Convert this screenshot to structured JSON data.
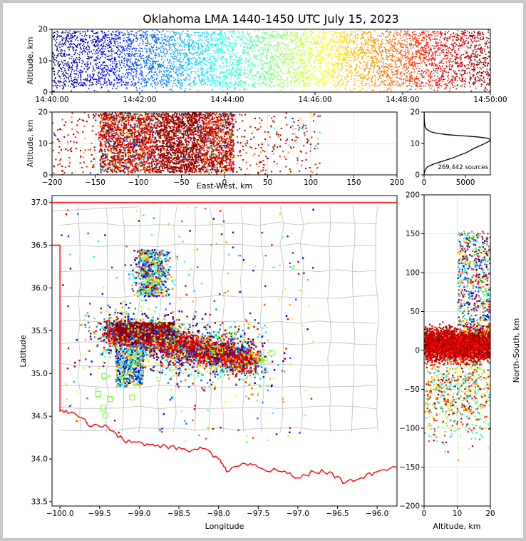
{
  "title": "Oklahoma LMA 1440-1450 UTC July 15, 2023",
  "chart_data": [
    {
      "id": "time-height",
      "type": "scatter",
      "ylabel": "Altitude, km",
      "xlim": [
        "14:40:00",
        "14:50:00"
      ],
      "ylim": [
        0,
        20
      ],
      "x_ticks": [
        "14:40:00",
        "14:42:00",
        "14:44:00",
        "14:46:00",
        "14:48:00",
        "14:50:00"
      ],
      "y_ticks": [
        "0",
        "10",
        "20"
      ],
      "color_by": "time",
      "colormap": [
        "#00007f",
        "#0000ff",
        "#00bfff",
        "#40ffbf",
        "#ffff00",
        "#ff8000",
        "#ff0000",
        "#7f0000"
      ]
    },
    {
      "id": "east-west-height",
      "type": "scatter",
      "xlabel": "East-West, km",
      "ylabel": "Altitude, km",
      "xlim": [
        -200,
        200
      ],
      "ylim": [
        0,
        20
      ],
      "x_ticks": [
        "−200",
        "−150",
        "−100",
        "−50",
        "0",
        "50",
        "100",
        "150",
        "200"
      ],
      "y_ticks": [
        "0",
        "10",
        "20"
      ],
      "core_extent_km": [
        -145,
        10
      ]
    },
    {
      "id": "altitude-histogram",
      "type": "line",
      "annotation": "269,442 sources",
      "xlim": [
        0,
        8000
      ],
      "ylim": [
        0,
        20
      ],
      "x_ticks": [
        "0",
        "5000"
      ],
      "y_ticks": [
        "0",
        "10",
        "20"
      ],
      "points": [
        [
          0,
          0.3
        ],
        [
          60,
          1.0
        ],
        [
          180,
          1.8
        ],
        [
          420,
          2.6
        ],
        [
          1200,
          3.5
        ],
        [
          2400,
          4.5
        ],
        [
          3600,
          5.5
        ],
        [
          4300,
          6.3
        ],
        [
          5100,
          7.1
        ],
        [
          5600,
          7.8
        ],
        [
          6000,
          8.4
        ],
        [
          6500,
          9.0
        ],
        [
          7000,
          9.6
        ],
        [
          7500,
          10.2
        ],
        [
          7900,
          10.8
        ],
        [
          8000,
          11.3
        ],
        [
          7600,
          11.7
        ],
        [
          6400,
          12.1
        ],
        [
          4400,
          12.5
        ],
        [
          2800,
          12.8
        ],
        [
          1600,
          13.2
        ],
        [
          800,
          13.7
        ],
        [
          350,
          14.4
        ],
        [
          130,
          15.3
        ],
        [
          50,
          16.5
        ],
        [
          20,
          18.0
        ],
        [
          5,
          20.0
        ]
      ]
    },
    {
      "id": "plan-view",
      "type": "scatter",
      "xlabel": "Longitude",
      "ylabel": "Latitude",
      "xlim": [
        -100.1,
        -95.75
      ],
      "ylim": [
        33.45,
        37.08
      ],
      "x_ticks": [
        "−100.0",
        "−99.5",
        "−99.0",
        "−98.5",
        "−98.0",
        "−97.5",
        "−97.0",
        "−96.5",
        "−96.0"
      ],
      "y_ticks": [
        "33.5",
        "34.0",
        "34.5",
        "35.0",
        "35.5",
        "36.0",
        "36.5",
        "37.0"
      ],
      "stations": [
        [
          -99.52,
          34.76
        ],
        [
          -99.46,
          34.6
        ],
        [
          -99.43,
          34.51
        ],
        [
          -99.37,
          34.7
        ],
        [
          -99.44,
          34.97
        ],
        [
          -99.09,
          34.72
        ],
        [
          -98.08,
          35.24
        ],
        [
          -97.98,
          35.27
        ],
        [
          -97.82,
          35.45
        ],
        [
          -97.47,
          35.16
        ],
        [
          -97.42,
          35.18
        ],
        [
          -97.33,
          35.24
        ],
        [
          -98.02,
          35.46
        ]
      ],
      "station_color": "#7fff3f",
      "border_color": "#ff0000"
    },
    {
      "id": "north-south-height",
      "type": "scatter",
      "xlabel": "Altitude, km",
      "ylabel": "North-South, km",
      "xlim": [
        0,
        20
      ],
      "ylim": [
        -200,
        200
      ],
      "x_ticks": [
        "0",
        "10",
        "20"
      ],
      "y_ticks": [
        "−200",
        "−150",
        "−100",
        "−50",
        "0",
        "50",
        "100",
        "150",
        "200"
      ]
    }
  ]
}
